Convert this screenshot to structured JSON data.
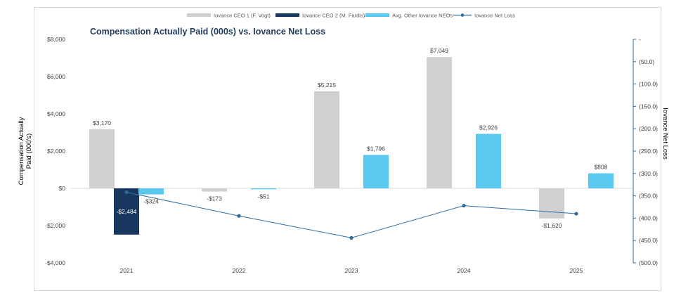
{
  "chart_data": {
    "type": "bar",
    "title": "Compensation Actually Paid (000s) vs. Iovance Net Loss",
    "ylabel_lines": [
      "Compensation Actually",
      "Paid (000's)"
    ],
    "y2label": "Iovance Net Loss",
    "categories": [
      "2021",
      "2022",
      "2023",
      "2024",
      "2025"
    ],
    "ylim": [
      -4000,
      8000
    ],
    "y_ticks": [
      -4000,
      -2000,
      0,
      2000,
      4000,
      6000,
      8000
    ],
    "y_tick_labels": [
      "-$4,000",
      "-$2,000",
      "$0",
      "$2,000",
      "$4,000",
      "$6,000",
      "$8,000"
    ],
    "y2lim": [
      0,
      -500
    ],
    "y2_ticks": [
      0,
      -50,
      -100,
      -150,
      -200,
      -250,
      -300,
      -350,
      -400,
      -450,
      -500
    ],
    "y2_tick_labels": [
      "-",
      "(50.0)",
      "(100.0)",
      "(150.0)",
      "(200.0)",
      "(250.0)",
      "(300.0)",
      "(350.0)",
      "(400.0)",
      "(450.0)",
      "(500.0)"
    ],
    "series": [
      {
        "name": "Iovance CEO 1 (F. Vogt)",
        "kind": "bar",
        "color": "#d0d0d0",
        "values": [
          3170,
          -173,
          5215,
          7049,
          -1620
        ],
        "labels": [
          "$3,170",
          "-$173",
          "$5,215",
          "$7,049",
          "-$1,620"
        ]
      },
      {
        "name": "Iovance CEO 2 (M. Fardis)",
        "kind": "bar",
        "color": "#17375e",
        "values": [
          -2484,
          null,
          null,
          null,
          null
        ],
        "labels": [
          "-$2,484",
          null,
          null,
          null,
          null
        ]
      },
      {
        "name": "Avg. Other Iovance NEOs",
        "kind": "bar",
        "color": "#5bc8f0",
        "values": [
          -324,
          -51,
          1796,
          2926,
          808
        ],
        "labels": [
          "-$324",
          "-$51",
          "$1,796",
          "$2,926",
          "$808"
        ]
      },
      {
        "name": "Iovance Net Loss",
        "kind": "line",
        "axis": "secondary",
        "color": "#2e6b9e",
        "values": [
          -342,
          -395,
          -444,
          -372,
          -390
        ]
      }
    ],
    "legend_position": "top",
    "grid": false
  }
}
